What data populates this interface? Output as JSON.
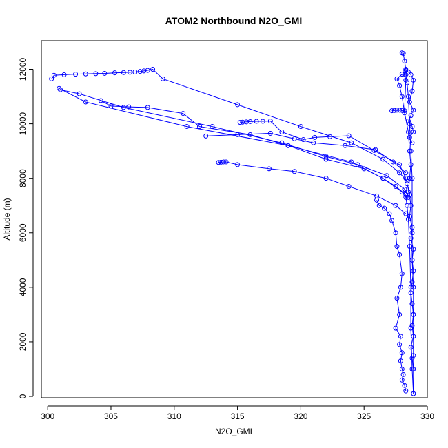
{
  "chart_data": {
    "type": "line",
    "title": "ATOM2 Northbound N2O_GMI",
    "xlabel": "N2O_GMI",
    "ylabel": "Altitude (m)",
    "xlim": [
      299.5,
      330
    ],
    "ylim": [
      -50,
      13050
    ],
    "x_ticks": [
      300,
      305,
      310,
      315,
      320,
      325,
      330
    ],
    "y_ticks": [
      0,
      2000,
      4000,
      6000,
      8000,
      10000,
      12000
    ],
    "grid": false,
    "legend": "none",
    "series_color": "#0000ff",
    "marker": "open-circle",
    "series": [
      {
        "x": [
          328.9,
          328.8,
          328.7,
          328.7,
          328.6,
          328.5,
          328.4,
          328.3,
          328.0,
          326.5,
          324.0,
          319.0,
          311.0,
          303.0,
          300.9
        ],
        "y": [
          100,
          1000,
          2500,
          4000,
          5500,
          6500,
          7000,
          7300,
          7500,
          8000,
          8600,
          9200,
          9900,
          10800,
          11300
        ]
      },
      {
        "x": [
          301.0,
          302.5,
          306.0,
          313.0,
          318.5,
          322.0,
          324.5,
          326.8,
          328.2,
          328.5
        ],
        "y": [
          11250,
          11100,
          10600,
          9900,
          9300,
          8800,
          8500,
          8100,
          7600,
          7300
        ]
      },
      {
        "x": [
          300.3,
          300.5,
          301.3,
          302.2,
          303.0,
          303.8,
          304.5,
          305.3,
          306.0,
          306.5,
          306.9,
          307.3,
          307.6,
          307.9,
          308.3,
          309.1,
          315.0,
          320.0,
          324.0,
          326.5,
          327.8,
          328.4
        ],
        "y": [
          11650,
          11780,
          11800,
          11820,
          11830,
          11840,
          11850,
          11870,
          11880,
          11890,
          11900,
          11920,
          11940,
          11960,
          12000,
          11650,
          10700,
          9900,
          9300,
          8700,
          8200,
          7900
        ]
      },
      {
        "x": [
          304.2,
          305.0,
          306.4,
          307.9,
          310.7,
          312.0,
          316.0,
          319.0,
          322.0,
          325.0,
          326.5,
          327.5,
          328.3
        ],
        "y": [
          10850,
          10650,
          10620,
          10600,
          10380,
          9900,
          9600,
          9200,
          8700,
          8350,
          8000,
          7700,
          7400
        ]
      },
      {
        "x": [
          315.2,
          315.4,
          315.7,
          316.0,
          316.5,
          317.0,
          317.6,
          318.5,
          320.2,
          321.1,
          322.3,
          323.8,
          325.8,
          327.8,
          328.3
        ],
        "y": [
          10050,
          10060,
          10070,
          10080,
          10090,
          10090,
          10100,
          9700,
          9420,
          9500,
          9530,
          9560,
          9020,
          8500,
          8000
        ]
      },
      {
        "x": [
          312.5,
          315.0,
          317.6,
          319.5,
          321.0,
          323.5,
          325.9,
          327.3,
          328.3
        ],
        "y": [
          9550,
          9600,
          9650,
          9450,
          9300,
          9200,
          9050,
          8600,
          8200
        ]
      },
      {
        "x": [
          313.5,
          313.7,
          313.9,
          314.1,
          315.0,
          317.5,
          319.5,
          322.0,
          323.8,
          326.0,
          327.5,
          328.3
        ],
        "y": [
          8580,
          8590,
          8600,
          8600,
          8500,
          8350,
          8250,
          8000,
          7700,
          7350,
          7000,
          6700
        ]
      },
      {
        "x": [
          326.0,
          326.2,
          326.6,
          327.0,
          327.2,
          327.5,
          327.6,
          327.8,
          328.0,
          327.9,
          327.6,
          327.8,
          327.5,
          327.9,
          327.8,
          328.0,
          327.9,
          328.0,
          328.1,
          328.0,
          328.2,
          328.3
        ],
        "y": [
          7200,
          7000,
          6900,
          6700,
          6450,
          6000,
          5500,
          5200,
          4500,
          4000,
          3600,
          3000,
          2500,
          2200,
          1900,
          1600,
          1300,
          1000,
          800,
          600,
          400,
          200
        ]
      },
      {
        "x": [
          327.2,
          327.4,
          327.6,
          327.8,
          328.0,
          328.2,
          328.3,
          328.2,
          328.0,
          327.6,
          327.8,
          328.0,
          328.2,
          328.5,
          328.6,
          328.7,
          328.6,
          328.5
        ],
        "y": [
          10480,
          10490,
          10500,
          10500,
          10490,
          10480,
          11600,
          11800,
          11820,
          11650,
          11400,
          11000,
          10400,
          9700,
          9000,
          8500,
          8000,
          7500
        ]
      },
      {
        "x": [
          328.0,
          328.1,
          328.2,
          328.3,
          328.3,
          328.4,
          328.5,
          328.6,
          328.7,
          328.8,
          328.8,
          328.8,
          328.9,
          328.9,
          328.9,
          328.9
        ],
        "y": [
          12600,
          12580,
          12300,
          12000,
          11800,
          11500,
          11000,
          10000,
          9000,
          8000,
          6000,
          5000,
          4000,
          3000,
          1500,
          100
        ]
      },
      {
        "x": [
          328.4,
          328.6,
          328.7,
          328.6,
          328.8,
          328.7,
          328.9,
          328.8,
          328.9,
          328.8,
          328.7,
          328.8,
          328.9,
          328.8,
          328.9,
          328.7,
          328.8,
          328.9
        ],
        "y": [
          7800,
          7400,
          7000,
          6600,
          6200,
          5800,
          5400,
          5000,
          4600,
          4200,
          3800,
          3400,
          3000,
          2600,
          2200,
          1800,
          1400,
          1000
        ]
      },
      {
        "x": [
          328.3,
          328.5,
          328.7,
          328.9,
          328.8,
          328.6,
          328.9,
          328.7,
          328.5,
          328.8,
          328.9,
          328.6,
          328.8
        ],
        "y": [
          11950,
          11900,
          11800,
          11600,
          11200,
          10800,
          10500,
          10300,
          10100,
          9900,
          9700,
          9500,
          9300
        ]
      }
    ]
  }
}
